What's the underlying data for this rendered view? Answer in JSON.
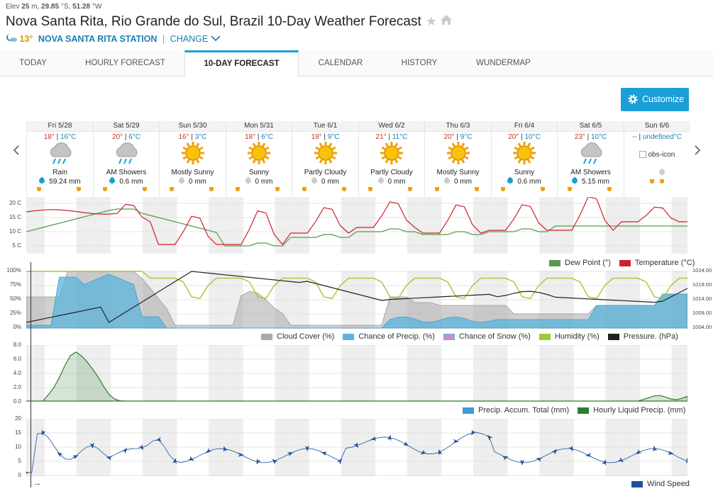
{
  "elevation": {
    "prefix": "Elev",
    "elev": "25",
    "elev_unit": "m,",
    "lat": "29.85",
    "lat_unit": "°S,",
    "lon": "51.28",
    "lon_unit": "°W"
  },
  "title": "Nova Santa Rita, Rio Grande do Sul, Brazil 10-Day Weather Forecast",
  "station": {
    "temp": "13°",
    "name": "NOVA SANTA RITA STATION",
    "change": "CHANGE"
  },
  "tabs": [
    "TODAY",
    "HOURLY FORECAST",
    "10-DAY FORECAST",
    "CALENDAR",
    "HISTORY",
    "WUNDERMAP"
  ],
  "active_tab": "10-DAY FORECAST",
  "customize_label": "Customize",
  "days": [
    {
      "name": "Fri 5/28",
      "hi": "18°",
      "lo": "16°C",
      "icon": "rain-icon",
      "cond": "Rain",
      "precip": "59.24 mm",
      "drop": "blue"
    },
    {
      "name": "Sat 5/29",
      "hi": "20°",
      "lo": "6°C",
      "icon": "rain-icon",
      "cond": "AM Showers",
      "precip": "0.6 mm",
      "drop": "blue"
    },
    {
      "name": "Sun 5/30",
      "hi": "16°",
      "lo": "3°C",
      "icon": "sun-icon",
      "cond": "Mostly Sunny",
      "precip": "0 mm",
      "drop": "gray"
    },
    {
      "name": "Mon 5/31",
      "hi": "18°",
      "lo": "6°C",
      "icon": "sun-icon",
      "cond": "Sunny",
      "precip": "0 mm",
      "drop": "gray"
    },
    {
      "name": "Tue 6/1",
      "hi": "19°",
      "lo": "9°C",
      "icon": "sun-icon",
      "cond": "Partly Cloudy",
      "precip": "0 mm",
      "drop": "gray"
    },
    {
      "name": "Wed 6/2",
      "hi": "21°",
      "lo": "11°C",
      "icon": "sun-icon",
      "cond": "Partly Cloudy",
      "precip": "0 mm",
      "drop": "gray"
    },
    {
      "name": "Thu 6/3",
      "hi": "20°",
      "lo": "9°C",
      "icon": "sun-icon",
      "cond": "Mostly Sunny",
      "precip": "0 mm",
      "drop": "gray"
    },
    {
      "name": "Fri 6/4",
      "hi": "20°",
      "lo": "10°C",
      "icon": "sun-icon",
      "cond": "Sunny",
      "precip": "0.6 mm",
      "drop": "blue"
    },
    {
      "name": "Sat 6/5",
      "hi": "23°",
      "lo": "10°C",
      "icon": "rain-icon",
      "cond": "AM Showers",
      "precip": "5.15 mm",
      "drop": "blue"
    },
    {
      "name": "Sun 6/6",
      "hi": "--",
      "lo": "undefined°C",
      "icon": "obs-icon",
      "cond": "",
      "precip": "",
      "drop": "gray",
      "img_alt": "obs-icon"
    }
  ],
  "temp_panel": {
    "yticks": [
      "20 C",
      "15 C",
      "10 C",
      "5 C"
    ],
    "legend": [
      "Dew Point (°)",
      "Temperature (°C)"
    ],
    "colors": {
      "dew": "#5a9a4a",
      "temp": "#d0202a"
    }
  },
  "cloud_panel": {
    "yticks": [
      "100%",
      "75%",
      "50%",
      "25%",
      "0%"
    ],
    "yticks_right": [
      "1024.00",
      "1019.00",
      "1014.00",
      "1009.00",
      "1004.00"
    ],
    "legend": [
      "Cloud Cover (%)",
      "Chance of Precip. (%)",
      "Chance of Snow (%)",
      "Humidity (%)",
      "Pressure. (hPa)"
    ],
    "colors": {
      "cloud": "#aaaaaa",
      "precip": "#5ab4dc",
      "snow": "#c890c8",
      "humidity": "#9ccc30",
      "pressure": "#222222"
    }
  },
  "precip_panel": {
    "yticks": [
      "8.0",
      "6.0",
      "4.0",
      "2.0",
      "0.0"
    ],
    "legend": [
      "Precip. Accum. Total (mm)",
      "Hourly Liquid Precip. (mm)"
    ],
    "colors": {
      "accum": "#3a9ed0",
      "hourly": "#2e7d2e"
    }
  },
  "wind_panel": {
    "yticks": [
      "20",
      "15",
      "10",
      "5",
      "0"
    ],
    "legend": [
      "Wind Speed"
    ],
    "colors": {
      "wind": "#1f4f9f"
    }
  }
}
